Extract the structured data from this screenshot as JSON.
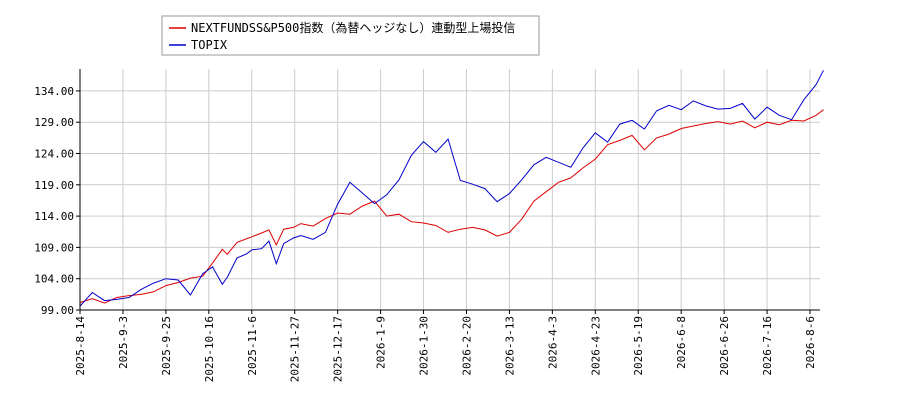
{
  "chart_data": {
    "type": "line",
    "title": "",
    "xlabel": "",
    "ylabel": "",
    "ylim": [
      99.0,
      137.5
    ],
    "y_ticks": [
      "99.00",
      "104.00",
      "109.00",
      "114.00",
      "119.00",
      "124.00",
      "129.00",
      "134.00"
    ],
    "x_ticks": [
      "2025-8-14",
      "2025-9-3",
      "2025-9-25",
      "2025-10-16",
      "2025-11-6",
      "2025-11-27",
      "2025-12-17",
      "2026-1-9",
      "2026-1-30",
      "2026-2-20",
      "2026-3-13",
      "2026-4-3",
      "2026-4-23",
      "2026-5-19",
      "2026-6-8",
      "2026-6-26",
      "2026-7-16",
      "2026-8-6"
    ],
    "grid": true,
    "legend_position": "top-left",
    "series": [
      {
        "name": "NEXTFUNDSS&P500指数（為替ヘッジなし）連動型上場投信",
        "color": "#dd0000",
        "points": [
          [
            0,
            100.2
          ],
          [
            0.5,
            100.8
          ],
          [
            1,
            100.1
          ],
          [
            1.5,
            101.0
          ],
          [
            2,
            101.3
          ],
          [
            2.5,
            101.5
          ],
          [
            3,
            101.9
          ],
          [
            3.5,
            102.9
          ],
          [
            4,
            103.4
          ],
          [
            4.5,
            104.1
          ],
          [
            5,
            104.4
          ],
          [
            5.4,
            106.5
          ],
          [
            5.8,
            108.7
          ],
          [
            6,
            107.9
          ],
          [
            6.4,
            109.8
          ],
          [
            6.8,
            110.4
          ],
          [
            7,
            110.7
          ],
          [
            7.4,
            111.3
          ],
          [
            7.7,
            111.8
          ],
          [
            8,
            109.4
          ],
          [
            8.3,
            111.9
          ],
          [
            8.7,
            112.2
          ],
          [
            9,
            112.8
          ],
          [
            9.5,
            112.4
          ],
          [
            10,
            113.6
          ],
          [
            10.5,
            114.5
          ],
          [
            11,
            114.3
          ],
          [
            11.5,
            115.6
          ],
          [
            12,
            116.4
          ],
          [
            12.5,
            114.0
          ],
          [
            13,
            114.3
          ],
          [
            13.5,
            113.1
          ],
          [
            14,
            112.9
          ],
          [
            14.5,
            112.5
          ],
          [
            15,
            111.4
          ],
          [
            15.5,
            111.9
          ],
          [
            16,
            112.2
          ],
          [
            16.5,
            111.8
          ],
          [
            17,
            110.8
          ],
          [
            17.5,
            111.4
          ],
          [
            18,
            113.5
          ],
          [
            18.5,
            116.4
          ],
          [
            19,
            117.9
          ],
          [
            19.5,
            119.4
          ],
          [
            20,
            120.1
          ],
          [
            20.5,
            121.7
          ],
          [
            21,
            123.1
          ],
          [
            21.5,
            125.4
          ],
          [
            22,
            126.1
          ],
          [
            22.5,
            126.9
          ],
          [
            23,
            124.6
          ],
          [
            23.5,
            126.5
          ],
          [
            24,
            127.1
          ],
          [
            24.5,
            128.0
          ],
          [
            25,
            128.4
          ],
          [
            25.5,
            128.8
          ],
          [
            26,
            129.1
          ],
          [
            26.5,
            128.7
          ],
          [
            27,
            129.2
          ],
          [
            27.5,
            128.1
          ],
          [
            28,
            129.0
          ],
          [
            28.5,
            128.6
          ],
          [
            29,
            129.3
          ],
          [
            29.5,
            129.2
          ],
          [
            30,
            130.1
          ],
          [
            30.3,
            131.0
          ]
        ]
      },
      {
        "name": "TOPIX",
        "color": "#0000cc",
        "points": [
          [
            0,
            99.6
          ],
          [
            0.5,
            101.8
          ],
          [
            1,
            100.5
          ],
          [
            1.5,
            100.7
          ],
          [
            2,
            101.0
          ],
          [
            2.5,
            102.3
          ],
          [
            3,
            103.3
          ],
          [
            3.5,
            104.0
          ],
          [
            4,
            103.8
          ],
          [
            4.5,
            101.4
          ],
          [
            5,
            104.8
          ],
          [
            5.4,
            105.9
          ],
          [
            5.8,
            103.1
          ],
          [
            6,
            104.2
          ],
          [
            6.4,
            107.3
          ],
          [
            6.8,
            108.0
          ],
          [
            7,
            108.6
          ],
          [
            7.4,
            108.8
          ],
          [
            7.7,
            110.0
          ],
          [
            8,
            106.4
          ],
          [
            8.3,
            109.6
          ],
          [
            8.7,
            110.5
          ],
          [
            9,
            110.9
          ],
          [
            9.5,
            110.3
          ],
          [
            10,
            111.4
          ],
          [
            10.5,
            115.9
          ],
          [
            11,
            119.4
          ],
          [
            11.5,
            117.7
          ],
          [
            12,
            116.0
          ],
          [
            12.5,
            117.4
          ],
          [
            13,
            119.8
          ],
          [
            13.5,
            123.7
          ],
          [
            14,
            125.9
          ],
          [
            14.5,
            124.2
          ],
          [
            15,
            126.3
          ],
          [
            15.5,
            119.7
          ],
          [
            16,
            119.1
          ],
          [
            16.5,
            118.4
          ],
          [
            17,
            116.3
          ],
          [
            17.5,
            117.6
          ],
          [
            18,
            119.8
          ],
          [
            18.5,
            122.2
          ],
          [
            19,
            123.4
          ],
          [
            19.5,
            122.6
          ],
          [
            20,
            121.8
          ],
          [
            20.5,
            124.9
          ],
          [
            21,
            127.3
          ],
          [
            21.5,
            125.8
          ],
          [
            22,
            128.7
          ],
          [
            22.5,
            129.3
          ],
          [
            23,
            127.9
          ],
          [
            23.5,
            130.8
          ],
          [
            24,
            131.7
          ],
          [
            24.5,
            131.0
          ],
          [
            25,
            132.4
          ],
          [
            25.5,
            131.6
          ],
          [
            26,
            131.1
          ],
          [
            26.5,
            131.2
          ],
          [
            27,
            132.0
          ],
          [
            27.5,
            129.5
          ],
          [
            28,
            131.4
          ],
          [
            28.5,
            130.1
          ],
          [
            29,
            129.4
          ],
          [
            29.5,
            132.6
          ],
          [
            30,
            135.0
          ],
          [
            30.3,
            137.3
          ]
        ]
      }
    ]
  }
}
